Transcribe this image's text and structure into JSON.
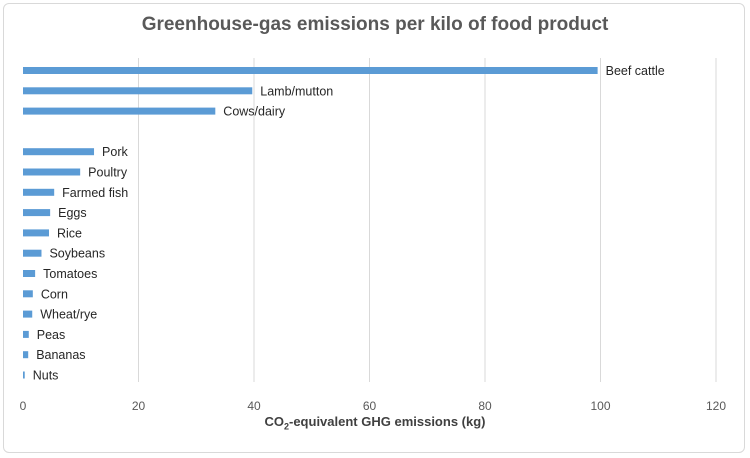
{
  "chart_data": {
    "type": "bar",
    "orientation": "horizontal",
    "title": "Greenhouse-gas emissions per kilo of food product",
    "xlabel": {
      "pre": "CO",
      "sub": "2",
      "post": "-equivalent GHG emissions (kg)"
    },
    "xlim": [
      0,
      120
    ],
    "xticks": [
      0,
      20,
      40,
      60,
      80,
      100,
      120
    ],
    "grid": "vertical",
    "bar_color": "#5b9bd5",
    "groups": [
      {
        "items": [
          {
            "label": "Beef cattle",
            "value": 99.5
          },
          {
            "label": "Lamb/mutton",
            "value": 39.7
          },
          {
            "label": "Cows/dairy",
            "value": 33.3
          }
        ]
      },
      {
        "items": [
          {
            "label": "Pork",
            "value": 12.3
          },
          {
            "label": "Poultry",
            "value": 9.9
          },
          {
            "label": "Farmed fish",
            "value": 5.4
          },
          {
            "label": "Eggs",
            "value": 4.7
          },
          {
            "label": "Rice",
            "value": 4.5
          },
          {
            "label": "Soybeans",
            "value": 3.2
          },
          {
            "label": "Tomatoes",
            "value": 2.1
          },
          {
            "label": "Corn",
            "value": 1.7
          },
          {
            "label": "Wheat/rye",
            "value": 1.6
          },
          {
            "label": "Peas",
            "value": 1.0
          },
          {
            "label": "Bananas",
            "value": 0.9
          },
          {
            "label": "Nuts",
            "value": 0.3
          }
        ]
      }
    ]
  }
}
